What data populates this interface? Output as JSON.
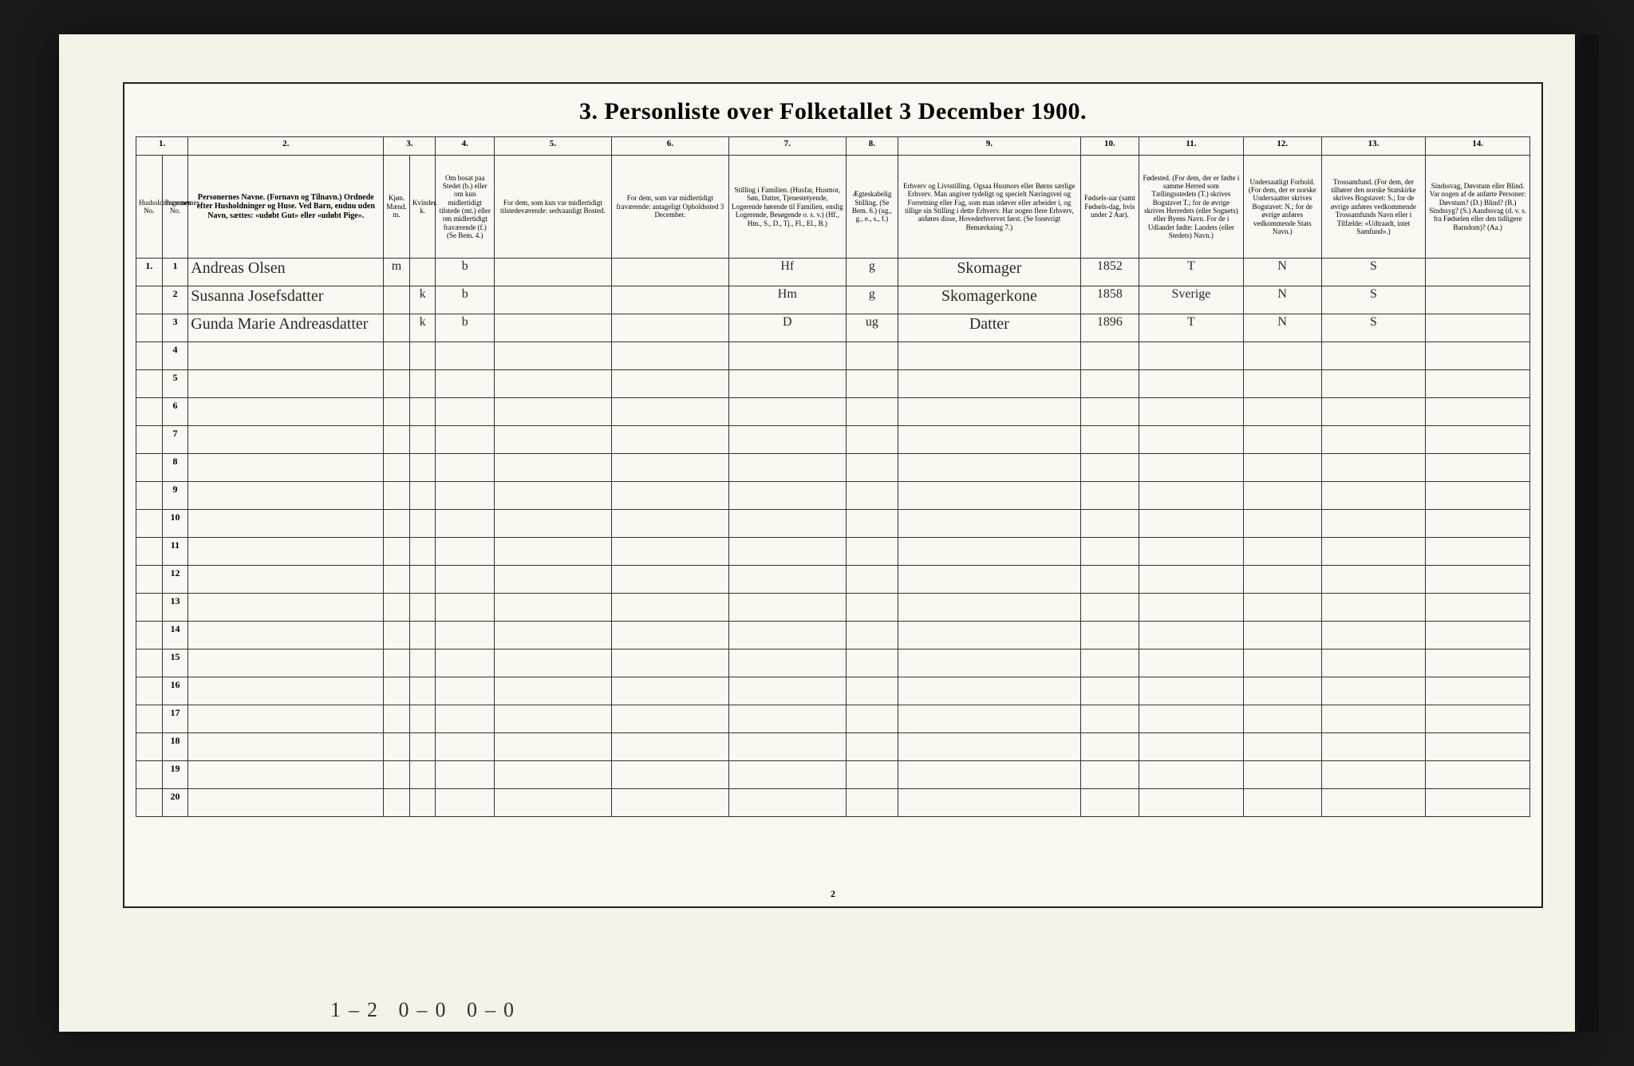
{
  "title": "3. Personliste over Folketallet 3 December 1900.",
  "colnums": [
    "1.",
    "",
    "2.",
    "3.",
    "4.",
    "5.",
    "6.",
    "7.",
    "8.",
    "9.",
    "10.",
    "11.",
    "12.",
    "13.",
    "14."
  ],
  "headers": [
    "Husholdningernes No.",
    "Personernes No.",
    "Personernes Navne.\n(Fornavn og Tilnavn.)\nOrdnede efter Husholdninger og Huse.\nVed Barn, endnu uden Navn, sættes: «udøbt Gut» eller «udøbt Pige».",
    "Kjøn.\nMænd.  m.",
    "Kvinder.  k.",
    "Om bosat paa Stedet (b.) eller om kun midlertidigt tilstede (mt.) eller om midlertidigt fraværende (f.)\n(Se Bem. 4.)",
    "For dem, som kun var midlertidigt tilstedeværende:\nsedvaanligt Bosted.",
    "For dem, som var midlertidigt fraværende:\nantageligt Opholdssted 3 December.",
    "Stilling i Familien.\n(Husfar, Husmor, Søn, Datter, Tjenestetyende, Logerende hørende til Familien, enslig Logerende, Besøgende o. s. v.)\n(Hf., Hm., S., D., Tj., Fl., El., B.)",
    "Ægteskabelig Stilling.\n(Se Bem. 6.)\n(ug., g., e., s., f.)",
    "Erhverv og Livsstilling.\nOgsaa Husmors eller Børns særlige Erhverv. Man angiver tydeligt og specielt Næringsvei og Forretning eller Fag, som man udøver eller arbeider i, og tillige sin Stilling i dette Erhverv. Har nogen flere Erhverv, anføres disse, Hovederhvervet først.\n(Se forøvrigt Bemærkning 7.)",
    "Fødsels-aar\n(samt Fødsels-dag, hvis under 2 Aar).",
    "Fødested.\n(For dem, der er fødte i samme Herred som Tællingsstedets (T.) skrives Bogstavet T.; for de øvrige skrives Herredets (eller Sognets) eller Byens Navn. For de i Udlandet fødte: Landets (eller Stedets) Navn.)",
    "Undersaatligt Forhold.\n(For dem, der er norske Undersaatter skrives Bogstavet: N.; for de øvrige anføres vedkommende Stats Navn.)",
    "Trossamfund.\n(For dem, der tilhører den norske Statskirke skrives Bogstavet: S.; for de øvrige anføres vedkommende Trossamfunds Navn eller i Tilfælde: «Udtraadt, intet Samfund».)",
    "Sindssvag, Døvstum eller Blind.\nVar nogen af de anførte Personer:\nDøvstum? (D.)\nBlind? (B.)\nSindssyg? (S.)\nAandssvag (d. v. s. fra Fødselen eller den tidligere Barndom)? (Aa.)"
  ],
  "rows": [
    {
      "hh": "1.",
      "pn": "1",
      "name": "Andreas Olsen",
      "m": "m",
      "k": "",
      "bos": "b",
      "c6": "",
      "c7": "",
      "fam": "Hf",
      "egt": "g",
      "erhv": "Skomager",
      "aar": "1852",
      "fsted": "T",
      "und": "N",
      "tro": "S",
      "sind": ""
    },
    {
      "hh": "",
      "pn": "2",
      "name": "Susanna Josefsdatter",
      "m": "",
      "k": "k",
      "bos": "b",
      "c6": "",
      "c7": "",
      "fam": "Hm",
      "egt": "g",
      "erhv": "Skomagerkone",
      "aar": "1858",
      "fsted": "Sverige",
      "und": "N",
      "tro": "S",
      "sind": ""
    },
    {
      "hh": "",
      "pn": "3",
      "name": "Gunda Marie Andreasdatter",
      "m": "",
      "k": "k",
      "bos": "b",
      "c6": "",
      "c7": "",
      "fam": "D",
      "egt": "ug",
      "erhv": "Datter",
      "aar": "1896",
      "fsted": "T",
      "und": "N",
      "tro": "S",
      "sind": ""
    }
  ],
  "empty_rows": [
    "4",
    "5",
    "6",
    "7",
    "8",
    "9",
    "10",
    "11",
    "12",
    "13",
    "14",
    "15",
    "16",
    "17",
    "18",
    "19",
    "20"
  ],
  "footer_handwriting": "1–2    0–0    0–0",
  "page_number": "2"
}
